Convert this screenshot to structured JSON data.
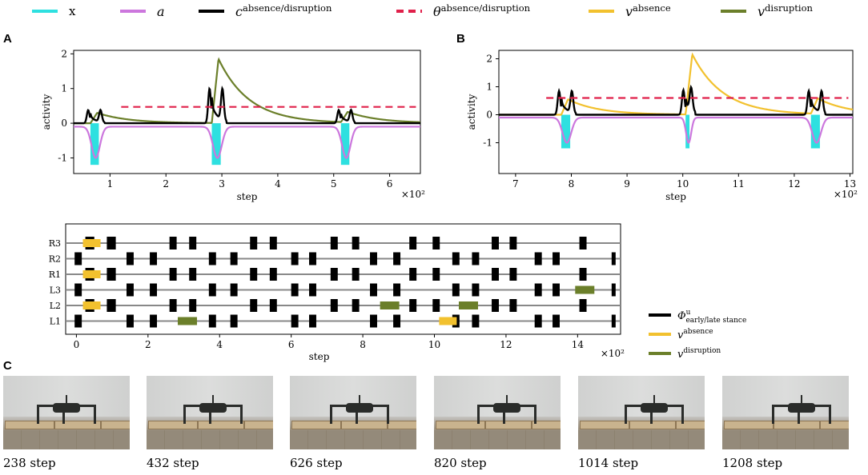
{
  "legend_top": [
    {
      "key": "x",
      "label": "x",
      "color": "#2ee0e0",
      "style": "solid"
    },
    {
      "key": "a",
      "label": "a",
      "color": "#cc77dd",
      "style": "solid"
    },
    {
      "key": "c",
      "label": "c",
      "sup": "absence/disruption",
      "color": "#000000",
      "style": "solid"
    },
    {
      "key": "theta",
      "label": "θ",
      "sup": "absence/disruption",
      "color": "#e0204a",
      "style": "dashed"
    },
    {
      "key": "vabs",
      "label": "v",
      "sup": "absence",
      "color": "#f2c12e",
      "style": "solid"
    },
    {
      "key": "vdis",
      "label": "v",
      "sup": "disruption",
      "color": "#6b7f2a",
      "style": "solid"
    }
  ],
  "panel_labels": {
    "a": "A",
    "b": "B",
    "c": "C"
  },
  "colors": {
    "x": "#2ee0e0",
    "a": "#cc77dd",
    "c": "#000000",
    "theta": "#e0204a",
    "vabs": "#f2c12e",
    "vdis": "#6b7f2a"
  },
  "chart_data": [
    {
      "id": "A",
      "type": "line",
      "title": "",
      "xlabel": "step",
      "ylabel": "activity",
      "x_multiplier": "×10²",
      "xlim": [
        0.35,
        6.55
      ],
      "ylim": [
        -1.45,
        2.1
      ],
      "xticks": [
        1,
        2,
        3,
        4,
        5,
        6
      ],
      "yticks": [
        -1,
        0,
        1,
        2
      ],
      "threshold": 0.47,
      "events": [
        {
          "x_start": 0.65,
          "x_end": 0.8,
          "peak_c": 0.38,
          "peak_v": 0.3,
          "v_series": "vdis"
        },
        {
          "x_start": 2.82,
          "x_end": 2.98,
          "peak_c": 1.0,
          "peak_v": 1.85,
          "v_series": "vdis"
        },
        {
          "x_start": 5.13,
          "x_end": 5.28,
          "peak_c": 0.38,
          "peak_v": 0.3,
          "v_series": "vdis"
        }
      ],
      "x_pulse_depth": -1.2,
      "a_trough": -1.0,
      "a_baseline": -0.1,
      "series": [
        {
          "name": "x",
          "key": "x"
        },
        {
          "name": "a",
          "key": "a"
        },
        {
          "name": "c",
          "key": "c"
        },
        {
          "name": "θ",
          "key": "theta"
        },
        {
          "name": "v disruption",
          "key": "vdis"
        }
      ]
    },
    {
      "id": "B",
      "type": "line",
      "title": "",
      "xlabel": "step",
      "ylabel": "activity",
      "x_multiplier": "×10²",
      "xlim": [
        6.7,
        13.05
      ],
      "ylim": [
        -2.1,
        2.3
      ],
      "xticks": [
        7,
        8,
        9,
        10,
        11,
        12,
        13
      ],
      "yticks": [
        -1,
        0,
        1,
        2
      ],
      "threshold": 0.6,
      "events": [
        {
          "x_start": 7.82,
          "x_end": 7.98,
          "peak_c": 0.85,
          "peak_v": 0.55,
          "v_series": "vabs"
        },
        {
          "x_start": 10.05,
          "x_end": 10.12,
          "peak_c": 0.88,
          "peak_v": 2.15,
          "v_series": "vabs"
        },
        {
          "x_start": 12.3,
          "x_end": 12.46,
          "peak_c": 0.85,
          "peak_v": 0.55,
          "v_series": "vabs"
        }
      ],
      "x_pulse_depth": -1.2,
      "a_trough": -1.0,
      "a_baseline": -0.1,
      "series": [
        {
          "name": "x",
          "key": "x"
        },
        {
          "name": "a",
          "key": "a"
        },
        {
          "name": "c",
          "key": "c"
        },
        {
          "name": "θ",
          "key": "theta"
        },
        {
          "name": "v absence",
          "key": "vabs"
        }
      ]
    },
    {
      "id": "gait",
      "type": "gait-diagram",
      "xlabel": "step",
      "x_multiplier": "×10²",
      "xlim": [
        -0.3,
        15.2
      ],
      "xticks": [
        0,
        2,
        4,
        6,
        8,
        10,
        12,
        14
      ],
      "legs": [
        "R3",
        "R2",
        "R1",
        "L3",
        "L2",
        "L1"
      ],
      "stance_blocks": {
        "R3": [
          0.25,
          0.5,
          0.85,
          1.1,
          2.6,
          2.8,
          3.15,
          3.35,
          4.85,
          5.05,
          5.4,
          5.6,
          7.1,
          7.3,
          7.7,
          7.9,
          9.3,
          9.5,
          9.95,
          10.15,
          11.6,
          11.8,
          12.1,
          12.3,
          14.05,
          14.25
        ],
        "R2": [
          -0.05,
          0.15,
          1.4,
          1.6,
          2.05,
          2.25,
          3.7,
          3.9,
          4.3,
          4.5,
          6.0,
          6.2,
          6.5,
          6.7,
          8.2,
          8.4,
          8.85,
          9.05,
          10.5,
          10.7,
          11.05,
          11.25,
          12.8,
          13.0,
          13.3,
          13.5,
          14.95,
          15.05
        ],
        "R1": [
          0.25,
          0.5,
          0.85,
          1.1,
          2.6,
          2.8,
          3.15,
          3.35,
          4.85,
          5.05,
          5.4,
          5.6,
          7.1,
          7.3,
          7.7,
          7.9,
          9.3,
          9.5,
          9.95,
          10.15,
          11.6,
          11.8,
          12.1,
          12.3,
          14.05,
          14.25
        ],
        "L3": [
          -0.05,
          0.15,
          1.4,
          1.6,
          2.05,
          2.25,
          3.7,
          3.9,
          4.3,
          4.5,
          6.0,
          6.2,
          6.5,
          6.7,
          8.2,
          8.4,
          8.85,
          9.05,
          10.5,
          10.7,
          11.05,
          11.25,
          12.8,
          13.0,
          13.3,
          13.5,
          14.95,
          15.05
        ],
        "L2": [
          0.25,
          0.5,
          0.85,
          1.1,
          2.6,
          2.8,
          3.15,
          3.35,
          4.85,
          5.05,
          5.4,
          5.6,
          7.1,
          7.3,
          7.7,
          7.9,
          9.3,
          9.5,
          9.95,
          10.15,
          11.6,
          11.8,
          12.1,
          12.3,
          14.05,
          14.25
        ],
        "L1": [
          -0.05,
          0.15,
          1.4,
          1.6,
          2.05,
          2.25,
          3.7,
          3.9,
          4.3,
          4.5,
          6.0,
          6.2,
          6.5,
          6.7,
          8.2,
          8.4,
          8.85,
          9.05,
          10.5,
          10.7,
          11.05,
          11.25,
          12.8,
          13.0,
          13.3,
          13.5,
          14.95,
          15.05
        ]
      },
      "absence_marks": [
        {
          "leg": "R3",
          "x": 0.45
        },
        {
          "leg": "R1",
          "x": 0.45
        },
        {
          "leg": "L2",
          "x": 0.45
        },
        {
          "leg": "L1",
          "x": 10.4
        }
      ],
      "disruption_marks": [
        {
          "leg": "L1",
          "x": 3.1
        },
        {
          "leg": "L2",
          "x": 8.75
        },
        {
          "leg": "L2",
          "x": 10.95
        },
        {
          "leg": "L3",
          "x": 14.2
        }
      ],
      "legend": [
        {
          "label": "Φ",
          "sup": "u",
          "sub": "early/late stance",
          "color": "#000000"
        },
        {
          "label": "v",
          "sup": "absence",
          "color": "#f2c12e"
        },
        {
          "label": "v",
          "sup": "disruption",
          "color": "#6b7f2a"
        }
      ]
    }
  ],
  "photos": [
    {
      "caption": "238 step",
      "variant": 0
    },
    {
      "caption": "432 step",
      "variant": 1
    },
    {
      "caption": "626 step",
      "variant": 2
    },
    {
      "caption": "820 step",
      "variant": 3
    },
    {
      "caption": "1014 step",
      "variant": 4
    },
    {
      "caption": "1208 step",
      "variant": 5
    }
  ]
}
